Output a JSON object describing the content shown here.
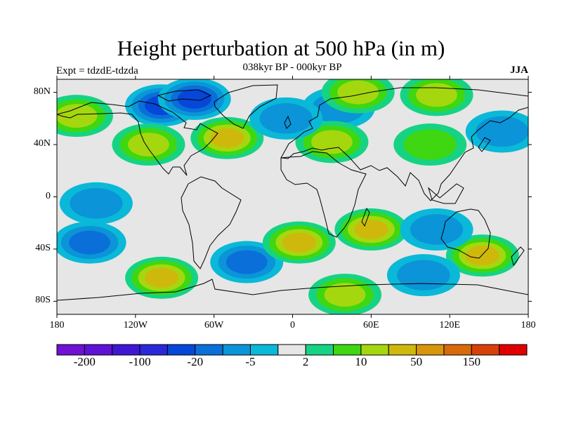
{
  "title": "Height perturbation at 500 hPa (in m)",
  "experiment_label": "Expt = tdzdE-tdzda",
  "subtitle": "038kyr BP - 000kyr BP",
  "season": "JJA",
  "map": {
    "projection": "cylindrical-equidistant",
    "lon_range": [
      -180,
      180
    ],
    "lat_range": [
      -90,
      90
    ],
    "y_ticks": [
      {
        "value": 80,
        "label": "80N"
      },
      {
        "value": 40,
        "label": "40N"
      },
      {
        "value": 0,
        "label": "0"
      },
      {
        "value": -40,
        "label": "40S"
      },
      {
        "value": -80,
        "label": "80S"
      }
    ],
    "x_ticks": [
      {
        "value": -180,
        "label": "180"
      },
      {
        "value": -120,
        "label": "120W"
      },
      {
        "value": -60,
        "label": "60W"
      },
      {
        "value": 0,
        "label": "0"
      },
      {
        "value": 60,
        "label": "60E"
      },
      {
        "value": 120,
        "label": "120E"
      },
      {
        "value": 180,
        "label": "180"
      }
    ],
    "background_color": "#e6e6e6",
    "anomalies": [
      {
        "lon": -100,
        "lat": 70,
        "value": -20
      },
      {
        "lon": -75,
        "lat": 75,
        "value": -40
      },
      {
        "lon": 160,
        "lat": 50,
        "value": -5
      },
      {
        "lon": 35,
        "lat": 68,
        "value": -5
      },
      {
        "lon": -50,
        "lat": 45,
        "value": 30
      },
      {
        "lon": -110,
        "lat": 40,
        "value": 10
      },
      {
        "lon": 50,
        "lat": 80,
        "value": 15
      },
      {
        "lon": 110,
        "lat": 78,
        "value": 10
      },
      {
        "lon": 105,
        "lat": 40,
        "value": 8
      },
      {
        "lon": 30,
        "lat": 42,
        "value": 10
      },
      {
        "lon": -165,
        "lat": 62,
        "value": 12
      },
      {
        "lon": -5,
        "lat": 60,
        "value": -5
      },
      {
        "lon": -155,
        "lat": -35,
        "value": -15
      },
      {
        "lon": -100,
        "lat": -62,
        "value": 30
      },
      {
        "lon": -35,
        "lat": -50,
        "value": -15
      },
      {
        "lon": 5,
        "lat": -35,
        "value": 25
      },
      {
        "lon": 60,
        "lat": -25,
        "value": 25
      },
      {
        "lon": 145,
        "lat": -45,
        "value": 30
      },
      {
        "lon": 100,
        "lat": -60,
        "value": -5
      },
      {
        "lon": 110,
        "lat": -25,
        "value": -5
      },
      {
        "lon": 40,
        "lat": -75,
        "value": 10
      },
      {
        "lon": -150,
        "lat": -5,
        "value": -5
      }
    ]
  },
  "colorbar": {
    "colors": [
      "#7011d3",
      "#5e12d5",
      "#4016d4",
      "#2a28d8",
      "#0547d8",
      "#0a6fd9",
      "#0b94d7",
      "#0ab8d8",
      "#e6e6e6",
      "#16d383",
      "#3ed711",
      "#a5d70f",
      "#cfb80c",
      "#d8960a",
      "#d86a0a",
      "#d8400b",
      "#e00000"
    ],
    "labels": [
      {
        "after_box": 1,
        "text": "-200"
      },
      {
        "after_box": 3,
        "text": "-100"
      },
      {
        "after_box": 5,
        "text": "-20"
      },
      {
        "after_box": 7,
        "text": "-5"
      },
      {
        "after_box": 9,
        "text": "2"
      },
      {
        "after_box": 11,
        "text": "10"
      },
      {
        "after_box": 13,
        "text": "50"
      },
      {
        "after_box": 15,
        "text": "150"
      }
    ],
    "levels": [
      -200,
      -150,
      -100,
      -50,
      -20,
      -10,
      -5,
      -2,
      2,
      5,
      10,
      20,
      50,
      100,
      150,
      200
    ]
  }
}
